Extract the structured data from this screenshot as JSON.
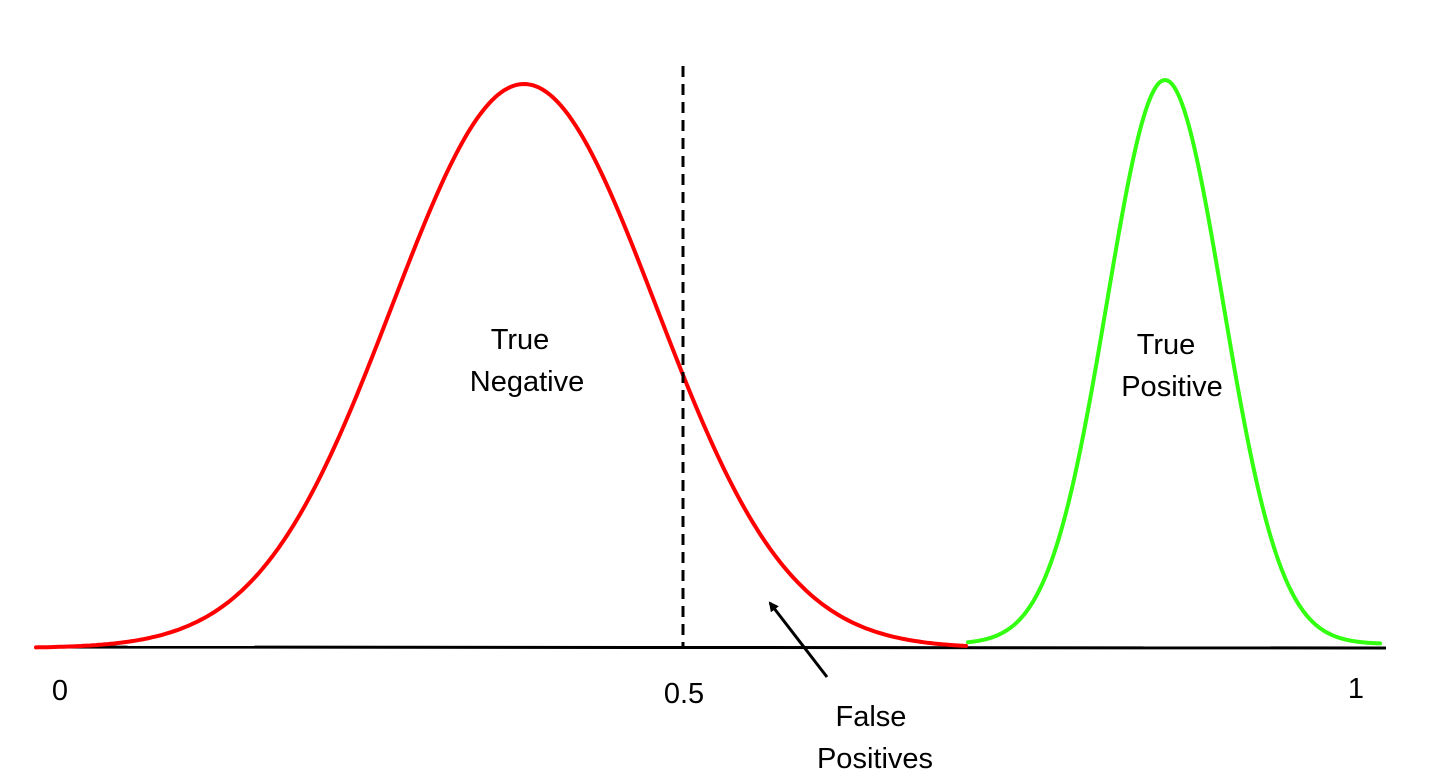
{
  "diagram": {
    "axis": {
      "range": [
        0,
        1
      ],
      "tick_labels": [
        "0",
        "0.5",
        "1"
      ],
      "line_color": "#000000"
    },
    "threshold": {
      "value": 0.5,
      "style": "dashed",
      "color": "#000000"
    },
    "distributions": [
      {
        "id": "negative",
        "color": "#ff0000",
        "label_lines": [
          "True",
          "Negative"
        ]
      },
      {
        "id": "positive",
        "color": "#33ff11",
        "label_lines": [
          "True",
          "Positive"
        ]
      }
    ],
    "annotation": {
      "label_lines": [
        "False",
        "Positives"
      ],
      "pointer": "arrow"
    }
  }
}
